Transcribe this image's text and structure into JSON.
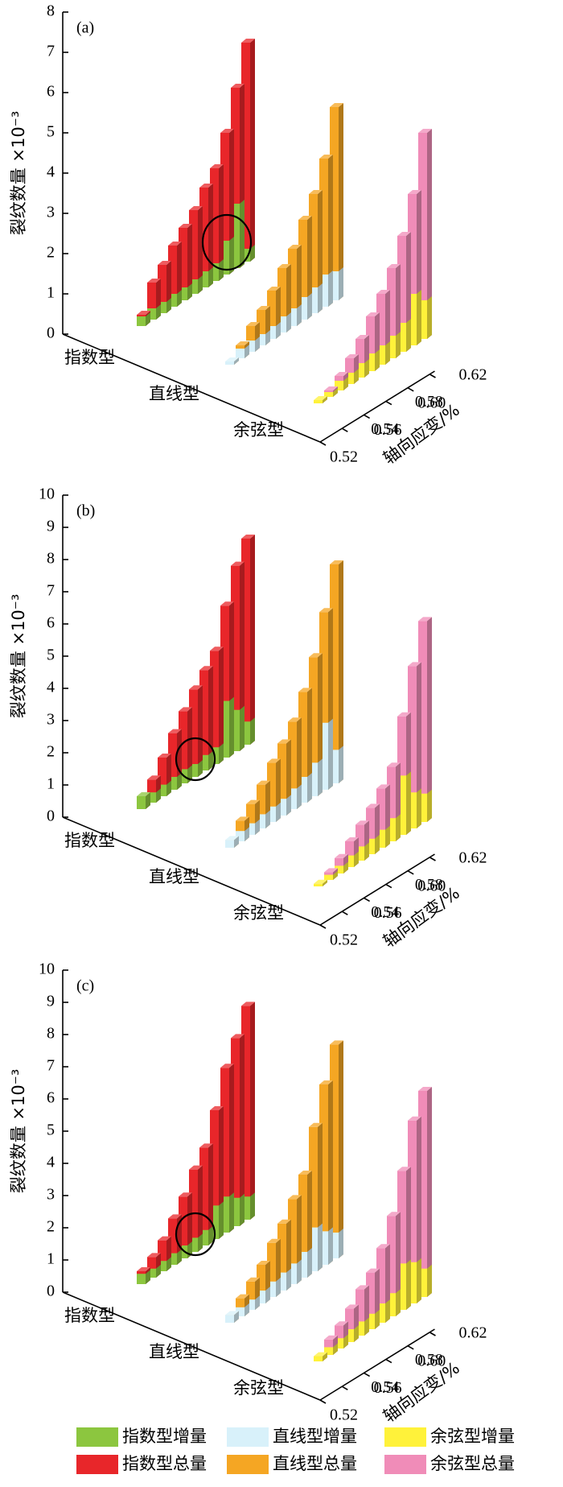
{
  "chart_data": [
    {
      "type": "bar3d",
      "panel_label": "(a)",
      "ylabel": "裂纹数量 ×10⁻³",
      "xlabel": "轴向应变/%",
      "ylim": [
        0,
        8
      ],
      "yticks": [
        0,
        1,
        2,
        3,
        4,
        5,
        6,
        7,
        8
      ],
      "groups": [
        "指数型",
        "直线型",
        "余弦型"
      ],
      "x": [
        0.52,
        0.53,
        0.54,
        0.55,
        0.56,
        0.57,
        0.58,
        0.59,
        0.6,
        0.61,
        0.62
      ],
      "xticks": [
        0.52,
        0.54,
        0.56,
        0.58,
        {
          "value": 0.6,
          "label": "0.60"
        },
        0.62
      ],
      "series": [
        {
          "name": "指数型增量",
          "color": "#8cc63f",
          "values": [
            0.3,
            0.35,
            0.35,
            0.4,
            0.4,
            0.45,
            0.5,
            0.55,
            1.05,
            2.0,
            0.4
          ]
        },
        {
          "name": "指数型总量",
          "color": "#e8262a",
          "values": [
            0.35,
            1.15,
            1.5,
            1.9,
            2.25,
            2.6,
            3.1,
            3.5,
            4.4,
            5.6,
            6.8
          ]
        },
        {
          "name": "直线型增量",
          "color": "#d8f1fa",
          "values": [
            0.1,
            0.3,
            0.35,
            0.35,
            0.4,
            0.5,
            0.55,
            0.7,
            0.8,
            1.0,
            0.9
          ]
        },
        {
          "name": "直线型总量",
          "color": "#f5a623",
          "values": [
            0.1,
            0.4,
            0.8,
            1.1,
            1.5,
            2.0,
            2.4,
            3.1,
            3.7,
            4.6,
            6.0
          ]
        },
        {
          "name": "余弦型增量",
          "color": "#fff23a",
          "values": [
            0.1,
            0.15,
            0.3,
            0.35,
            0.45,
            0.55,
            0.6,
            0.7,
            0.9,
            1.6,
            1.2
          ]
        },
        {
          "name": "余弦型总量",
          "color": "#f08cb8",
          "values": [
            0.1,
            0.2,
            0.45,
            0.8,
            1.2,
            1.7,
            2.2,
            2.8,
            3.6,
            4.7,
            6.4
          ]
        }
      ]
    },
    {
      "type": "bar3d",
      "panel_label": "(b)",
      "ylabel": "裂纹数量 ×10⁻³",
      "xlabel": "轴向应变/%",
      "ylim": [
        0,
        10
      ],
      "yticks": [
        0,
        1,
        2,
        3,
        4,
        5,
        6,
        7,
        8,
        9,
        10
      ],
      "groups": [
        "指数型",
        "直线型",
        "余弦型"
      ],
      "x": [
        0.52,
        0.53,
        0.54,
        0.55,
        0.56,
        0.57,
        0.58,
        0.59,
        0.6,
        0.61,
        0.62
      ],
      "xticks": [
        0.52,
        0.54,
        0.56,
        0.58,
        {
          "value": 0.6,
          "label": "0.60"
        },
        0.62
      ],
      "series": [
        {
          "name": "指数型增量",
          "color": "#8cc63f",
          "values": [
            0.5,
            0.4,
            0.45,
            0.5,
            0.55,
            0.5,
            0.6,
            0.65,
            2.2,
            1.6,
            0.9
          ]
        },
        {
          "name": "指数型总量",
          "color": "#e8262a",
          "values": [
            0.5,
            0.9,
            1.5,
            2.2,
            2.8,
            3.4,
            3.9,
            4.4,
            5.9,
            7.2,
            8.0
          ]
        },
        {
          "name": "直线型增量",
          "color": "#d8f1fa",
          "values": [
            0.3,
            0.4,
            0.45,
            0.55,
            0.6,
            0.65,
            0.8,
            1.0,
            1.3,
            2.6,
            1.3
          ]
        },
        {
          "name": "直线型总量",
          "color": "#f5a623",
          "values": [
            0.3,
            0.8,
            1.2,
            1.7,
            2.3,
            2.8,
            3.4,
            4.3,
            5.4,
            6.9,
            8.5
          ]
        },
        {
          "name": "余弦型增量",
          "color": "#fff23a",
          "values": [
            0.1,
            0.2,
            0.3,
            0.45,
            0.55,
            0.6,
            0.7,
            0.9,
            2.3,
            1.4,
            1.1
          ]
        },
        {
          "name": "余弦型总量",
          "color": "#f08cb8",
          "values": [
            0.1,
            0.3,
            0.6,
            1.0,
            1.4,
            1.8,
            2.3,
            2.9,
            4.6,
            6.3,
            7.8
          ]
        }
      ]
    },
    {
      "type": "bar3d",
      "panel_label": "(c)",
      "ylabel": "裂纹数量 ×10⁻³",
      "xlabel": "轴向应变/%",
      "ylim": [
        0,
        10
      ],
      "yticks": [
        0,
        1,
        2,
        3,
        4,
        5,
        6,
        7,
        8,
        9,
        10
      ],
      "groups": [
        "指数型",
        "直线型",
        "余弦型"
      ],
      "x": [
        0.52,
        0.53,
        0.54,
        0.55,
        0.56,
        0.57,
        0.58,
        0.59,
        0.6,
        0.61,
        0.62
      ],
      "xticks": [
        0.52,
        0.54,
        0.56,
        0.58,
        {
          "value": 0.6,
          "label": "0.60"
        },
        0.62
      ],
      "series": [
        {
          "name": "指数型增量",
          "color": "#8cc63f",
          "values": [
            0.4,
            0.35,
            0.4,
            0.45,
            0.5,
            0.55,
            0.6,
            1.3,
            1.4,
            1.1,
            0.9
          ]
        },
        {
          "name": "指数型总量",
          "color": "#e8262a",
          "values": [
            0.5,
            0.8,
            1.2,
            1.8,
            2.4,
            3.2,
            3.8,
            5.0,
            6.4,
            7.3,
            8.3
          ]
        },
        {
          "name": "直线型增量",
          "color": "#d8f1fa",
          "values": [
            0.3,
            0.35,
            0.4,
            0.5,
            0.6,
            0.7,
            0.8,
            1.0,
            1.7,
            1.3,
            1.0
          ]
        },
        {
          "name": "直线型总量",
          "color": "#f5a623",
          "values": [
            0.3,
            0.7,
            1.1,
            1.5,
            2.1,
            2.6,
            3.3,
            4.0,
            5.6,
            7.0,
            8.3
          ]
        },
        {
          "name": "余弦型增量",
          "color": "#fff23a",
          "values": [
            0.2,
            0.3,
            0.4,
            0.5,
            0.55,
            0.6,
            0.75,
            0.9,
            1.8,
            1.6,
            1.1
          ]
        },
        {
          "name": "余弦型总量",
          "color": "#f08cb8",
          "values": [
            0.2,
            0.6,
            0.9,
            1.3,
            1.8,
            2.2,
            2.9,
            3.9,
            5.4,
            7.1,
            8.0
          ]
        }
      ]
    }
  ]
}
